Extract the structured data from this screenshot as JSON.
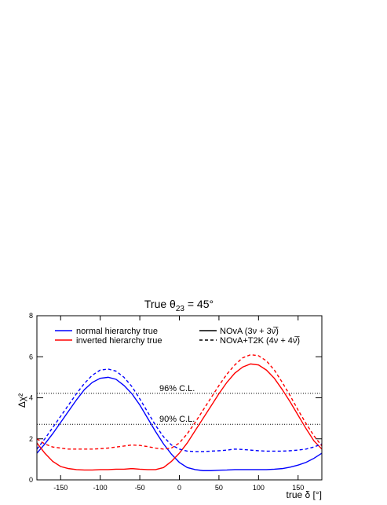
{
  "chart_data": {
    "type": "line",
    "title": {
      "main": "True θ",
      "subscript": "23",
      "rest": " = 45°"
    },
    "x_label": "true δ [°]",
    "y_label": "Δχ²",
    "x": [
      -180,
      -170,
      -160,
      -150,
      -140,
      -130,
      -120,
      -110,
      -100,
      -90,
      -80,
      -70,
      -60,
      -50,
      -40,
      -30,
      -20,
      -10,
      0,
      10,
      20,
      30,
      40,
      50,
      60,
      70,
      80,
      90,
      100,
      110,
      120,
      130,
      140,
      150,
      160,
      170,
      180
    ],
    "series": [
      {
        "name": "normal hierarchy true",
        "color": "#0000ff",
        "dash": "solid",
        "values": [
          1.3,
          1.75,
          2.25,
          2.8,
          3.35,
          3.9,
          4.4,
          4.75,
          4.95,
          5.0,
          4.9,
          4.6,
          4.2,
          3.65,
          3.0,
          2.35,
          1.75,
          1.25,
          0.85,
          0.6,
          0.5,
          0.45,
          0.45,
          0.47,
          0.48,
          0.5,
          0.5,
          0.5,
          0.5,
          0.5,
          0.52,
          0.55,
          0.62,
          0.72,
          0.85,
          1.05,
          1.3
        ]
      },
      {
        "name": "inverted hierarchy true",
        "color": "#ff0000",
        "dash": "solid",
        "values": [
          1.8,
          1.3,
          0.9,
          0.65,
          0.55,
          0.5,
          0.48,
          0.48,
          0.5,
          0.5,
          0.52,
          0.52,
          0.55,
          0.52,
          0.5,
          0.5,
          0.6,
          0.9,
          1.3,
          1.8,
          2.4,
          3.0,
          3.6,
          4.2,
          4.75,
          5.2,
          5.5,
          5.65,
          5.6,
          5.35,
          4.95,
          4.4,
          3.8,
          3.15,
          2.5,
          1.9,
          1.5
        ]
      },
      {
        "color": "#0000ff",
        "dash": "dashed",
        "values": [
          1.5,
          2.0,
          2.55,
          3.1,
          3.65,
          4.2,
          4.7,
          5.1,
          5.35,
          5.4,
          5.3,
          5.0,
          4.55,
          3.95,
          3.3,
          2.65,
          2.1,
          1.7,
          1.5,
          1.4,
          1.38,
          1.38,
          1.4,
          1.42,
          1.45,
          1.5,
          1.48,
          1.45,
          1.42,
          1.4,
          1.4,
          1.4,
          1.42,
          1.45,
          1.5,
          1.6,
          1.75
        ]
      },
      {
        "color": "#ff0000",
        "dash": "dashed",
        "values": [
          2.0,
          1.75,
          1.6,
          1.55,
          1.5,
          1.5,
          1.5,
          1.5,
          1.52,
          1.55,
          1.6,
          1.65,
          1.7,
          1.68,
          1.62,
          1.55,
          1.5,
          1.55,
          1.8,
          2.25,
          2.8,
          3.4,
          4.0,
          4.6,
          5.15,
          5.6,
          5.95,
          6.1,
          6.05,
          5.8,
          5.35,
          4.75,
          4.1,
          3.4,
          2.75,
          2.15,
          1.65
        ]
      }
    ],
    "style_legend": [
      {
        "label": "NOvA (3ν + 3ν̅)",
        "dash": "solid"
      },
      {
        "label": "NOvA+T2K (4ν + 4ν̅)",
        "dash": "dashed"
      }
    ],
    "hlines": [
      {
        "text": "96% C.L.",
        "value": 4.22
      },
      {
        "text": "90% C.L.",
        "value": 2.71
      }
    ],
    "xlim": [
      -180,
      180
    ],
    "ylim": [
      0,
      8
    ],
    "xticks": [
      -150,
      -100,
      -50,
      0,
      50,
      100,
      150
    ],
    "yticks": [
      0,
      2,
      4,
      6,
      8
    ]
  }
}
